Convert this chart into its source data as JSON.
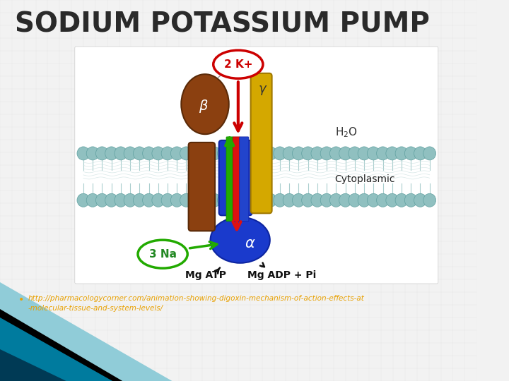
{
  "title": "SODIUM POTASSIUM PUMP",
  "title_fontsize": 28,
  "title_color": "#2a2a2a",
  "background_color": "#f2f2f2",
  "url_text_line1": "http://pharmacologycorner.com/animation-showing-digoxin-mechanism-of-action-effects-at",
  "url_text_line2": "-molecular-tissue-and-system-levels/",
  "url_color": "#e8a000",
  "url_fontsize": 7.5,
  "corner_teal": "#007b9e",
  "corner_dark": "#003a55",
  "corner_light": "#90ccd8",
  "corner_black": "#000000",
  "membrane_color": "#90c0c0",
  "membrane_edge": "#60a0a0",
  "alpha_color": "#1a3acc",
  "alpha_edge": "#0d25a0",
  "beta_color": "#8B4010",
  "beta_edge": "#5a2a08",
  "gamma_color": "#d4a800",
  "gamma_edge": "#a07800",
  "green_bar": "#22aa00",
  "red_bar": "#dd1111",
  "blue_bar": "#2244cc",
  "k_oval_edge": "#cc0000",
  "na_oval_edge": "#22aa00",
  "label_color": "#111111"
}
